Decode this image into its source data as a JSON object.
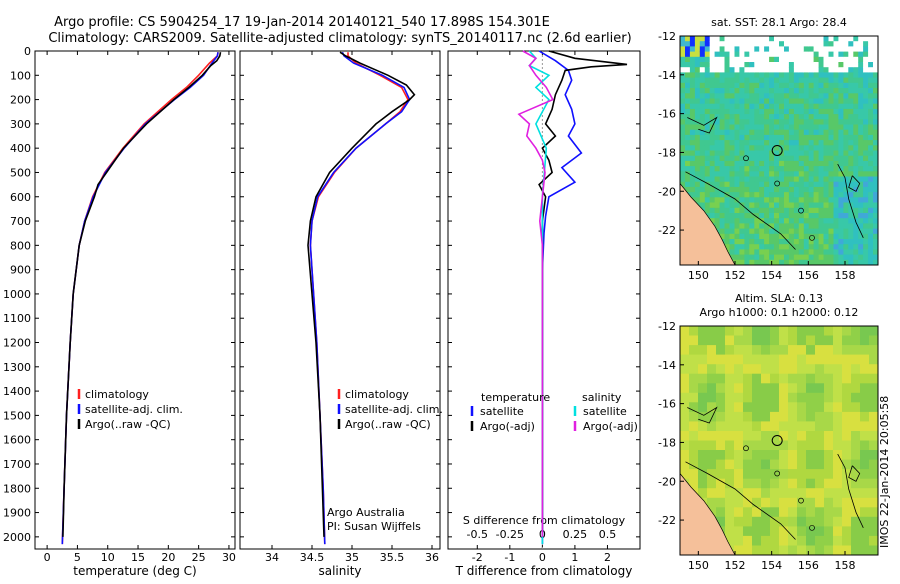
{
  "title": {
    "line1": "Argo profile: CS 5904254_17 19-Jan-2014 20140121_540 17.898S 154.301E",
    "line2": "Climatology: CARS2009. Satellite-adjusted climatology: synTS_20140117.nc (2.6d earlier)"
  },
  "colors": {
    "climatology": "#ff2020",
    "satellite": "#1010ff",
    "argo": "#000000",
    "cyan": "#00e0e0",
    "magenta": "#e020e0",
    "land": "#f5c09a"
  },
  "depth_axis": {
    "range": [
      0,
      2050
    ],
    "ticks": [
      0,
      100,
      200,
      300,
      400,
      500,
      600,
      700,
      800,
      900,
      1000,
      1100,
      1200,
      1300,
      1400,
      1500,
      1600,
      1700,
      1800,
      1900,
      2000
    ],
    "tick_labels": [
      "0",
      "100",
      "200",
      "300",
      "400",
      "500",
      "600",
      "700",
      "800",
      "900",
      "1000",
      "1100",
      "1200",
      "1300",
      "1400",
      "1500",
      "1600",
      "1700",
      "1800",
      "1900",
      "2000"
    ]
  },
  "chart_data": [
    {
      "type": "line",
      "id": "temperature",
      "xlabel": "temperature (deg C)",
      "xlim": [
        -2,
        31
      ],
      "xticks": [
        0,
        5,
        10,
        15,
        20,
        25,
        30
      ],
      "xtick_labels": [
        "0",
        "5",
        "10",
        "15",
        "20",
        "25",
        "30"
      ],
      "legend": [
        "climatology",
        "satellite-adj. clim.",
        "Argo(..raw -QC)"
      ],
      "series": [
        {
          "name": "climatology",
          "color": "#ff2020",
          "depth": [
            5,
            20,
            50,
            100,
            150,
            200,
            300,
            400,
            500,
            600,
            700,
            800,
            1000,
            1200,
            1500,
            1800,
            2030
          ],
          "values": [
            28.2,
            28.1,
            26.8,
            25.0,
            23.0,
            20.5,
            16.0,
            12.5,
            9.5,
            7.5,
            6.2,
            5.3,
            4.3,
            3.8,
            3.2,
            2.8,
            2.5
          ]
        },
        {
          "name": "satellite-adj. clim.",
          "color": "#1010ff",
          "depth": [
            5,
            20,
            50,
            100,
            150,
            200,
            300,
            400,
            500,
            600,
            700,
            800,
            1000,
            1200,
            1500,
            1800,
            2030
          ],
          "values": [
            28.2,
            28.1,
            27.2,
            25.8,
            23.6,
            21.0,
            16.2,
            12.7,
            9.6,
            7.6,
            6.2,
            5.3,
            4.3,
            3.8,
            3.2,
            2.8,
            2.5
          ]
        },
        {
          "name": "Argo(..raw -QC)",
          "color": "#000000",
          "depth": [
            5,
            20,
            40,
            60,
            100,
            150,
            200,
            300,
            400,
            500,
            550,
            600,
            700,
            800,
            1000,
            1200,
            1500,
            1800,
            2000
          ],
          "values": [
            28.6,
            28.5,
            28.0,
            27.0,
            25.6,
            23.4,
            20.9,
            16.4,
            12.6,
            9.8,
            8.4,
            7.8,
            6.3,
            5.3,
            4.3,
            3.8,
            3.2,
            2.8,
            2.6
          ]
        }
      ]
    },
    {
      "type": "line",
      "id": "salinity",
      "xlabel": "salinity",
      "xlim": [
        33.6,
        36.1
      ],
      "xticks": [
        34,
        34.5,
        35,
        35.5,
        36
      ],
      "xtick_labels": [
        "34",
        "34.5",
        "35",
        "35.5",
        "36"
      ],
      "legend": [
        "climatology",
        "satellite-adj. clim.",
        "Argo(..raw -QC)"
      ],
      "annotation": [
        "Argo Australia",
        "PI: Susan Wijffels"
      ],
      "series": [
        {
          "name": "climatology",
          "color": "#ff2020",
          "depth": [
            5,
            20,
            50,
            100,
            150,
            200,
            250,
            300,
            400,
            500,
            600,
            700,
            800,
            1000,
            1200,
            1500,
            1800,
            2030
          ],
          "values": [
            34.95,
            34.95,
            35.05,
            35.35,
            35.62,
            35.7,
            35.6,
            35.42,
            35.05,
            34.78,
            34.58,
            34.5,
            34.48,
            34.52,
            34.56,
            34.6,
            34.64,
            34.66
          ]
        },
        {
          "name": "satellite-adj. clim.",
          "color": "#1010ff",
          "depth": [
            5,
            20,
            50,
            100,
            150,
            200,
            250,
            300,
            400,
            500,
            600,
            700,
            800,
            1000,
            1200,
            1500,
            1800,
            2030
          ],
          "values": [
            34.88,
            34.9,
            35.02,
            35.38,
            35.65,
            35.72,
            35.62,
            35.42,
            35.05,
            34.77,
            34.57,
            34.5,
            34.48,
            34.52,
            34.56,
            34.6,
            34.64,
            34.66
          ]
        },
        {
          "name": "Argo(..raw -QC)",
          "color": "#000000",
          "depth": [
            5,
            20,
            50,
            100,
            140,
            180,
            200,
            250,
            300,
            400,
            500,
            600,
            700,
            800,
            1000,
            1200,
            1500,
            1800,
            2000
          ],
          "values": [
            34.85,
            34.92,
            35.1,
            35.45,
            35.68,
            35.78,
            35.72,
            35.5,
            35.3,
            35.0,
            34.72,
            34.55,
            34.48,
            34.45,
            34.5,
            34.55,
            34.6,
            34.63,
            34.65
          ]
        }
      ]
    },
    {
      "type": "line",
      "id": "differences",
      "xlabel": "T difference from climatology",
      "xlim": [
        -2.9,
        3.0
      ],
      "xticks": [
        -2,
        -1,
        0,
        1,
        2
      ],
      "xtick_labels": [
        "-2",
        "-1",
        "0",
        "1",
        "2"
      ],
      "top_scale_label": "S difference from climatology",
      "top_scale_ticks": [
        -0.5,
        -0.25,
        0,
        0.25,
        0.5
      ],
      "top_scale_tick_labels": [
        "-0.5",
        "-0.25",
        "0",
        "0.25",
        "0.5"
      ],
      "legend_temperature_title": "temperature",
      "legend_salinity_title": "salinity",
      "legend": [
        "satellite",
        "Argo(-adj)",
        "satellite",
        "Argo(-adj)"
      ],
      "series": [
        {
          "name": "temperature satellite",
          "color": "#1010ff",
          "depth": [
            0,
            40,
            80,
            120,
            180,
            240,
            300,
            350,
            420,
            480,
            540,
            600,
            680,
            750,
            900,
            1200,
            1600,
            2030
          ],
          "values": [
            -0.1,
            0.4,
            0.8,
            0.9,
            0.7,
            0.9,
            1.0,
            0.8,
            1.2,
            0.6,
            1.0,
            0.2,
            0.1,
            0.05,
            0.0,
            0.0,
            0.0,
            0.0
          ]
        },
        {
          "name": "temperature Argo(-adj)",
          "color": "#000000",
          "depth": [
            0,
            30,
            55,
            65,
            80,
            120,
            180,
            240,
            300,
            350,
            400,
            450,
            500,
            550,
            600,
            700,
            800,
            1000,
            1500,
            2000
          ],
          "values": [
            0.2,
            1.0,
            2.6,
            1.5,
            0.7,
            0.6,
            0.4,
            0.3,
            0.1,
            0.4,
            0.0,
            0.2,
            0.3,
            -0.1,
            0.1,
            0.0,
            0.0,
            0.0,
            0.0,
            0.0
          ]
        },
        {
          "name": "salinity satellite",
          "color": "#00e0e0",
          "depth": [
            0,
            30,
            60,
            100,
            150,
            200,
            300,
            400,
            600,
            800,
            1200,
            1600,
            2030
          ],
          "values": [
            -0.1,
            -0.05,
            -0.1,
            0.05,
            -0.05,
            0.05,
            -0.05,
            0.03,
            0.0,
            0.0,
            0.0,
            0.0,
            0.0
          ]
        },
        {
          "name": "salinity Argo(-adj)",
          "color": "#e020e0",
          "depth": [
            0,
            30,
            60,
            100,
            150,
            200,
            260,
            300,
            350,
            400,
            450,
            500,
            600,
            700,
            800,
            1000,
            1500,
            2000
          ],
          "values": [
            -0.15,
            -0.05,
            -0.1,
            -0.05,
            0.03,
            0.08,
            -0.18,
            -0.1,
            -0.12,
            -0.05,
            0.0,
            0.02,
            0.0,
            -0.02,
            0.0,
            0.0,
            0.0,
            0.0
          ]
        }
      ]
    },
    {
      "type": "heatmap",
      "id": "sst-map",
      "title": "sat. SST: 28.1  Argo: 28.4",
      "xticks": [
        150,
        152,
        154,
        156,
        158
      ],
      "xtick_labels": [
        "150",
        "152",
        "154",
        "156",
        "158"
      ],
      "yticks": [
        -12,
        -14,
        -16,
        -18,
        -20,
        -22
      ],
      "ytick_labels": [
        "-12",
        "-14",
        "-16",
        "-18",
        "-20",
        "-22"
      ],
      "xlim": [
        149,
        159.8
      ],
      "ylim": [
        -23.8,
        -12
      ],
      "argo_position": [
        154.301,
        -17.898
      ]
    },
    {
      "type": "heatmap",
      "id": "sla-map",
      "title_line1": "Altim. SLA: 0.13",
      "title_line2": "Argo h1000: 0.1  h2000: 0.12",
      "xticks": [
        150,
        152,
        154,
        156,
        158
      ],
      "xtick_labels": [
        "150",
        "152",
        "154",
        "156",
        "158"
      ],
      "yticks": [
        -12,
        -14,
        -16,
        -18,
        -20,
        -22
      ],
      "ytick_labels": [
        "-12",
        "-14",
        "-16",
        "-18",
        "-20",
        "-22"
      ],
      "xlim": [
        149,
        159.8
      ],
      "ylim": [
        -23.8,
        -12
      ],
      "argo_position": [
        154.301,
        -17.898
      ]
    }
  ],
  "stamp": "IMOS 22-Jan-2014 20:05:58"
}
